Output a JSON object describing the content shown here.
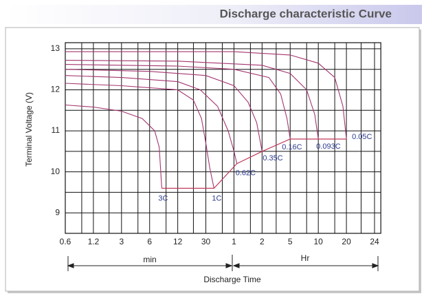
{
  "chart_data": {
    "type": "line",
    "title": "Discharge characteristic Curve",
    "ylabel": "Terminal Voltage (V)",
    "xlabel": "Discharge Time",
    "x_unit_labels": [
      "min",
      "Hr"
    ],
    "xscale": "log",
    "grid": true,
    "xlim": [
      0.6,
      1500
    ],
    "ylim": [
      8.5,
      13.15
    ],
    "xticks": [
      0.6,
      1.2,
      3,
      6,
      12,
      30,
      {
        "value": 60,
        "label": "1"
      },
      {
        "value": 120,
        "label": "2"
      },
      {
        "value": 300,
        "label": "5"
      },
      {
        "value": 600,
        "label": "10"
      },
      {
        "value": 1200,
        "label": "20"
      },
      {
        "value": 1440,
        "label": "24"
      }
    ],
    "xgrid_minor": [
      0.9,
      2,
      4.5,
      9,
      20,
      45,
      90,
      190,
      450,
      900,
      1320
    ],
    "yticks": [
      9,
      10,
      11,
      12,
      13
    ],
    "ygrid_minor": [
      8.5,
      9.5,
      10.5,
      11.5,
      12.5
    ],
    "label_color": "#2b3a8c",
    "series": [
      {
        "name": "3C",
        "color": "#a3346f",
        "x": [
          0.6,
          1.2,
          3,
          5,
          6.8,
          7.6,
          8.1
        ],
        "values": [
          11.63,
          11.58,
          11.48,
          11.3,
          11.0,
          10.6,
          9.6
        ]
      },
      {
        "name": "1C",
        "color": "#a3346f",
        "x": [
          0.6,
          3,
          12,
          20,
          26,
          30,
          33,
          36.7
        ],
        "values": [
          12.16,
          12.1,
          12.0,
          11.75,
          11.3,
          10.7,
          10.1,
          9.6
        ]
      },
      {
        "name": "0.62C",
        "color": "#a3346f",
        "x": [
          0.6,
          3,
          12,
          25,
          40,
          52,
          60,
          64.5
        ],
        "values": [
          12.35,
          12.3,
          12.2,
          12.0,
          11.6,
          11.0,
          10.5,
          10.2
        ]
      },
      {
        "name": "0.35C",
        "color": "#a3346f",
        "x": [
          0.6,
          6,
          30,
          60,
          85,
          105,
          120
        ],
        "values": [
          12.5,
          12.45,
          12.35,
          12.1,
          11.7,
          11.2,
          10.5
        ]
      },
      {
        "name": "0.16C",
        "color": "#a3346f",
        "x": [
          0.6,
          12,
          60,
          150,
          220,
          270,
          300
        ],
        "values": [
          12.62,
          12.58,
          12.5,
          12.3,
          11.9,
          11.3,
          10.8
        ]
      },
      {
        "name": "0.093C",
        "color": "#a3346f",
        "x": [
          0.6,
          12,
          120,
          300,
          450,
          550,
          600
        ],
        "values": [
          12.72,
          12.7,
          12.6,
          12.4,
          12.0,
          11.4,
          10.8
        ]
      },
      {
        "name": "0.05C",
        "color": "#a3346f",
        "x": [
          0.6,
          60,
          300,
          600,
          900,
          1100,
          1200
        ],
        "values": [
          12.93,
          12.93,
          12.85,
          12.65,
          12.3,
          11.6,
          10.8
        ]
      }
    ],
    "cutoff_line": {
      "color": "#c0395a",
      "x": [
        8.1,
        36.7,
        64.5,
        120,
        300,
        600,
        1200
      ],
      "values": [
        9.6,
        9.6,
        10.2,
        10.5,
        10.8,
        10.8,
        10.8
      ]
    }
  }
}
